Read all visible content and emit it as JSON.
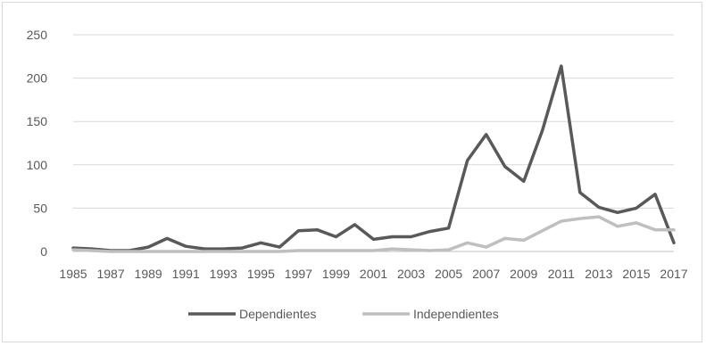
{
  "chart_data": {
    "type": "line",
    "title": "",
    "xlabel": "",
    "ylabel": "",
    "ylim": [
      0,
      250
    ],
    "y_ticks": [
      0,
      50,
      100,
      150,
      200,
      250
    ],
    "grid": "horizontal",
    "legend_position": "bottom",
    "x": [
      1985,
      1986,
      1987,
      1988,
      1989,
      1990,
      1991,
      1992,
      1993,
      1994,
      1995,
      1996,
      1997,
      1998,
      1999,
      2000,
      2001,
      2002,
      2003,
      2004,
      2005,
      2006,
      2007,
      2008,
      2009,
      2010,
      2011,
      2012,
      2013,
      2014,
      2015,
      2016,
      2017
    ],
    "x_tick_labels": [
      "1985",
      "1987",
      "1989",
      "1991",
      "1993",
      "1995",
      "1997",
      "1999",
      "2001",
      "2003",
      "2005",
      "2007",
      "2009",
      "2011",
      "2013",
      "2015",
      "2017"
    ],
    "series": [
      {
        "name": "Dependientes",
        "color": "#595959",
        "values": [
          4,
          3,
          1,
          1,
          5,
          15,
          6,
          3,
          3,
          4,
          10,
          5,
          24,
          25,
          17,
          31,
          14,
          17,
          17,
          23,
          27,
          105,
          135,
          98,
          81,
          140,
          214,
          68,
          51,
          45,
          50,
          66,
          10
        ]
      },
      {
        "name": "Independientes",
        "color": "#bfbfbf",
        "values": [
          2,
          1,
          0,
          0,
          0,
          0,
          0,
          0,
          0,
          0,
          0,
          0,
          1,
          1,
          1,
          1,
          1,
          3,
          2,
          1,
          2,
          10,
          5,
          15,
          13,
          24,
          35,
          38,
          40,
          29,
          33,
          25,
          25
        ]
      }
    ]
  }
}
